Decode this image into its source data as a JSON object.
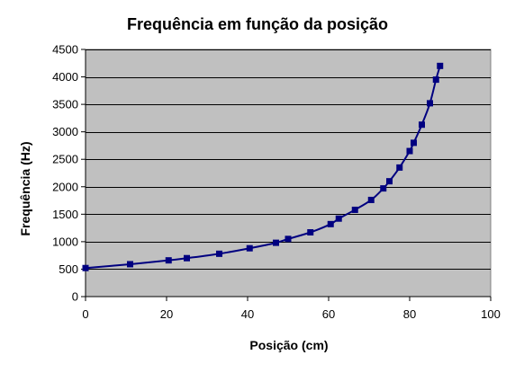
{
  "chart_data": {
    "type": "line",
    "title": "Frequência em função da posição",
    "xlabel": "Posição (cm)",
    "ylabel": "Frequência (Hz)",
    "xlim": [
      0,
      100
    ],
    "ylim": [
      0,
      4500
    ],
    "xticks": [
      0,
      20,
      40,
      60,
      80,
      100
    ],
    "yticks": [
      0,
      500,
      1000,
      1500,
      2000,
      2500,
      3000,
      3500,
      4000,
      4500
    ],
    "grid": "horizontal",
    "legend": "none",
    "series": [
      {
        "x": [
          0,
          11,
          20.5,
          25,
          33,
          40.5,
          47,
          50,
          55.5,
          60.5,
          62.5,
          66.5,
          70.5,
          73.5,
          75,
          77.5,
          80,
          81,
          83,
          85,
          86.5,
          87.5
        ],
        "y": [
          520,
          590,
          660,
          700,
          780,
          880,
          980,
          1050,
          1170,
          1320,
          1420,
          1580,
          1760,
          1970,
          2100,
          2350,
          2650,
          2800,
          3130,
          3520,
          3950,
          4200
        ]
      }
    ],
    "colors": {
      "plot_background": "#c0c0c0",
      "gridline": "#000000",
      "series": "#000080",
      "frame": "#808080"
    }
  }
}
